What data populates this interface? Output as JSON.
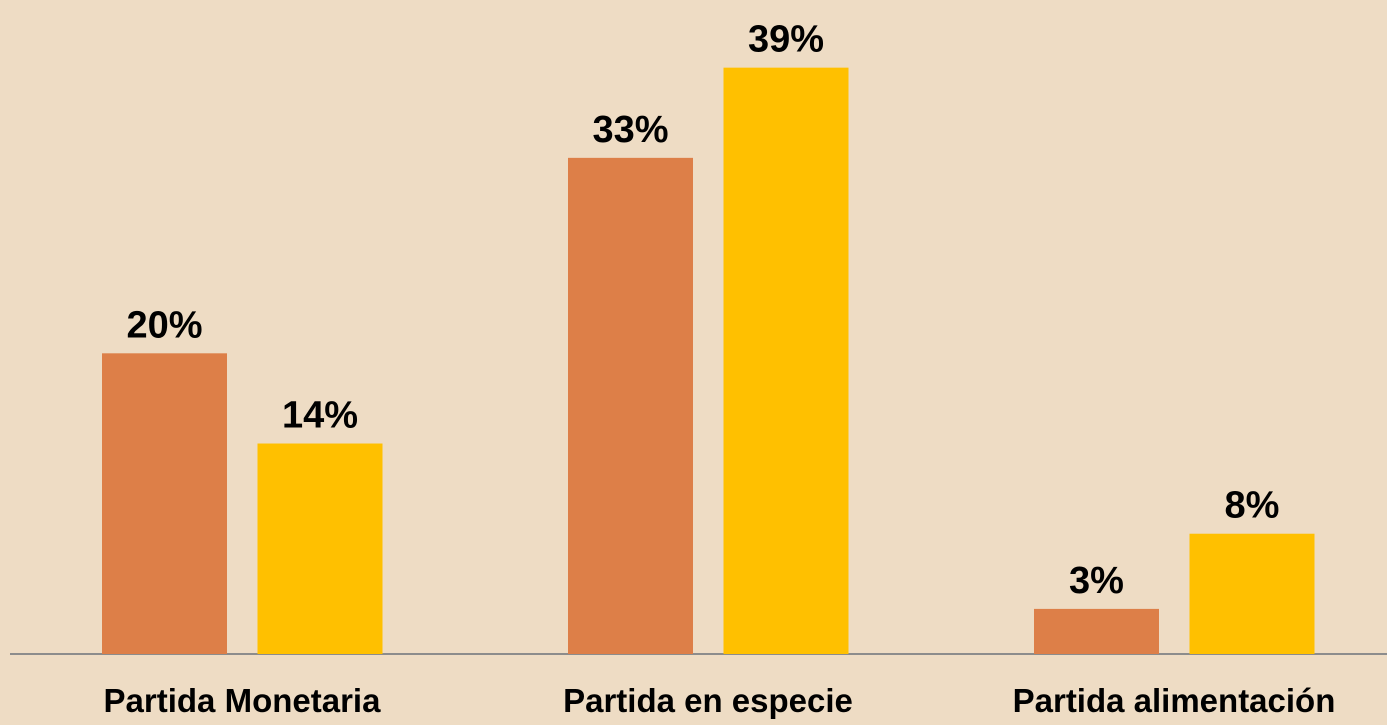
{
  "chart_data": {
    "type": "bar",
    "categories": [
      "Partida Monetaria",
      "Partida en especie",
      "Partida alimentación"
    ],
    "series": [
      {
        "color": "#dd7f48",
        "values": [
          20,
          33,
          3
        ],
        "value_labels": [
          "20%",
          "33%",
          "3%"
        ]
      },
      {
        "color": "#ffc000",
        "values": [
          14,
          39,
          8
        ],
        "value_labels": [
          "14%",
          "39%",
          "8%"
        ]
      }
    ],
    "ylim": [
      0,
      43.5
    ]
  }
}
